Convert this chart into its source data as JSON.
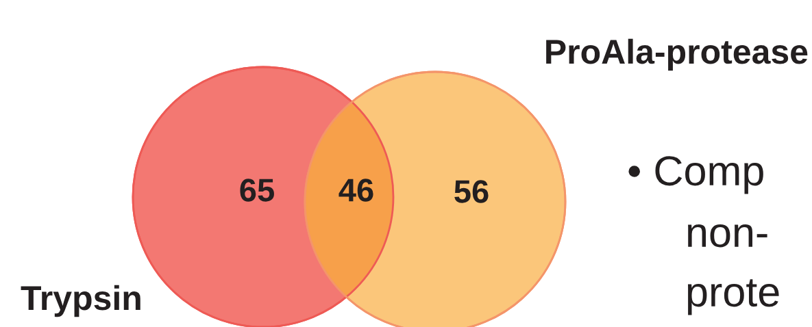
{
  "chart_data": {
    "type": "other",
    "categories": [
      "Trypsin",
      null,
      "ProAla-protease"
    ],
    "values": [
      65,
      46,
      56
    ],
    "colors": [
      "#f37872",
      "#f7a04a",
      "#fbc67a"
    ],
    "data_labels": true,
    "annotations": [
      "• Comp",
      "non-",
      "prote"
    ]
  }
}
